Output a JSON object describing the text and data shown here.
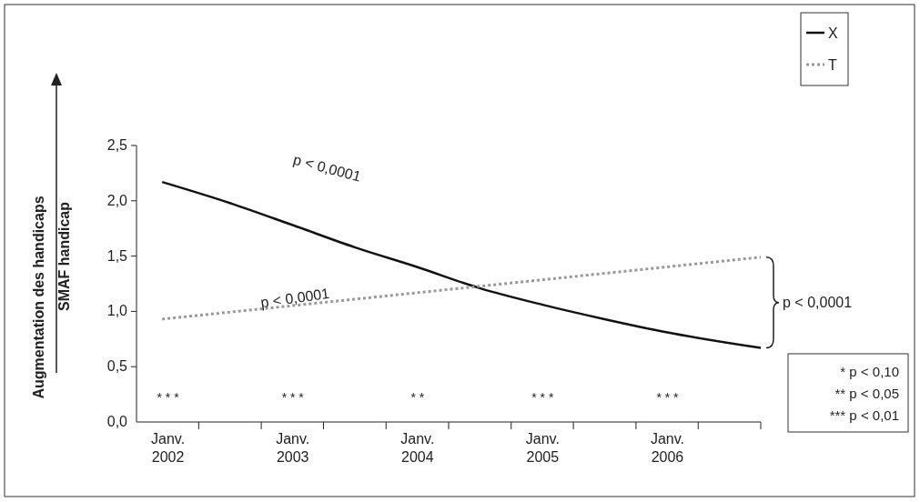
{
  "chart_data": {
    "type": "line",
    "ylabel": "SMAF handicap",
    "x": [
      "2001-12-15",
      "2002-07",
      "2003-01",
      "2003-07",
      "2004-01",
      "2004-07",
      "2005-01",
      "2005-07",
      "2006-01",
      "2006-10"
    ],
    "series": [
      {
        "name": "X",
        "color": "#111111",
        "line_style": "solid",
        "values": [
          2.17,
          1.98,
          1.78,
          1.58,
          1.4,
          1.21,
          1.06,
          0.93,
          0.81,
          0.67
        ]
      },
      {
        "name": "T",
        "color": "#999999",
        "line_style": "dotted",
        "x": [
          "2001-12-15",
          "2006-10"
        ],
        "values": [
          0.93,
          1.49
        ]
      }
    ],
    "xlim": [
      "2001-10",
      "2006-10"
    ],
    "xticks": [
      {
        "value": "2002-01",
        "label": "Janv.\n2002"
      },
      {
        "value": "2002-04",
        "label": null
      },
      {
        "value": "2002-10",
        "label": null
      },
      {
        "value": "2003-01",
        "label": "Janv.\n2003"
      },
      {
        "value": "2003-04",
        "label": null
      },
      {
        "value": "2003-10",
        "label": null
      },
      {
        "value": "2004-01",
        "label": "Janv.\n2004"
      },
      {
        "value": "2004-04",
        "label": null
      },
      {
        "value": "2004-10",
        "label": null
      },
      {
        "value": "2005-01",
        "label": "Janv.\n2005"
      },
      {
        "value": "2005-04",
        "label": null
      },
      {
        "value": "2005-10",
        "label": null
      },
      {
        "value": "2006-01",
        "label": "Janv.\n2006"
      },
      {
        "value": "2006-04",
        "label": null
      },
      {
        "value": "2006-10",
        "label": null
      }
    ],
    "ylim": [
      0,
      2.5
    ],
    "yticks": [
      {
        "value": 0,
        "label": "0,0"
      },
      {
        "value": 0.5,
        "label": "0,5"
      },
      {
        "value": 1,
        "label": "1,0"
      },
      {
        "value": 1.5,
        "label": "1,5"
      },
      {
        "value": 2,
        "label": "2,0"
      },
      {
        "value": 2.5,
        "label": "2,5"
      }
    ],
    "legend": "top right",
    "grid": false,
    "marker": "none",
    "annotations": [
      "Augmentation des handicaps",
      "p < 0,0001",
      "p < 0,0001",
      "p < 0,0001",
      "* * *",
      "* * *",
      "* *",
      "* * *",
      "* * *",
      "* p < 0,10",
      "** p < 0,05",
      "*** p < 0,01"
    ]
  }
}
